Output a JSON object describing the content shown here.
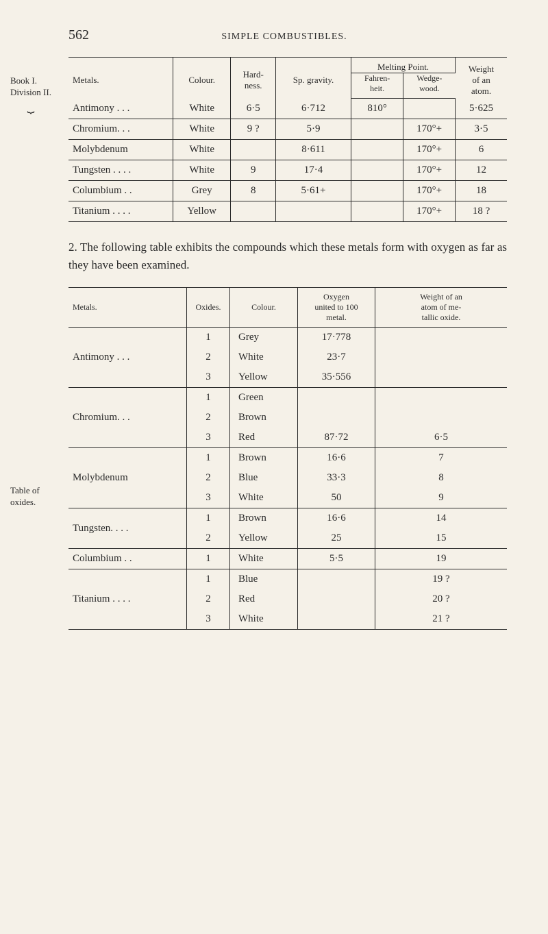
{
  "page_number": "562",
  "running_head": "SIMPLE COMBUSTIBLES.",
  "side1": {
    "l1": "Book I.",
    "l2": "Division II."
  },
  "side2": {
    "l1": "Table of",
    "l2": "oxides."
  },
  "t1": {
    "h_metals": "Metals.",
    "h_colour": "Colour.",
    "h_hard": "Hard-\nness.",
    "h_sp": "Sp. gravity.",
    "h_melt": "Melting Point.",
    "h_fah": "Fahren-\nheit.",
    "h_wed": "Wedge-\nwood.",
    "h_weight": "Weight\nof an\natom.",
    "r": [
      {
        "m": "Antimony . . .",
        "col": "White",
        "h": "6·5",
        "sp": "6·712",
        "f": "810°",
        "w": "",
        "wt": "5·625"
      },
      {
        "m": "Chromium. . .",
        "col": "White",
        "h": "9 ?",
        "sp": "5·9",
        "f": "",
        "w": "170°+",
        "wt": "3·5"
      },
      {
        "m": "Molybdenum",
        "col": "White",
        "h": "",
        "sp": "8·611",
        "f": "",
        "w": "170°+",
        "wt": "6"
      },
      {
        "m": "Tungsten . . . .",
        "col": "White",
        "h": "9",
        "sp": "17·4",
        "f": "",
        "w": "170°+",
        "wt": "12"
      },
      {
        "m": "Columbium . .",
        "col": "Grey",
        "h": "8",
        "sp": "5·61+",
        "f": "",
        "w": "170°+",
        "wt": "18"
      },
      {
        "m": "Titanium . . . .",
        "col": "Yellow",
        "h": "",
        "sp": "",
        "f": "",
        "w": "170°+",
        "wt": "18 ?"
      }
    ]
  },
  "paragraph": "2. The following table exhibits the compounds which these metals form with oxygen as far as they have been examined.",
  "t2": {
    "h_metals": "Metals.",
    "h_ox": "Oxides.",
    "h_col": "Colour.",
    "h_oxy": "Oxygen\nunited to 100\nmetal.",
    "h_wt": "Weight of an\natom of me-\ntallic oxide.",
    "groups": [
      {
        "metal": "Antimony . . .",
        "rows": [
          {
            "o": "1",
            "c": "Grey",
            "x": "17·778",
            "w": ""
          },
          {
            "o": "2",
            "c": "White",
            "x": "23·7",
            "w": ""
          },
          {
            "o": "3",
            "c": "Yellow",
            "x": "35·556",
            "w": ""
          }
        ]
      },
      {
        "metal": "Chromium. . .",
        "rows": [
          {
            "o": "1",
            "c": "Green",
            "x": "",
            "w": ""
          },
          {
            "o": "2",
            "c": "Brown",
            "x": "",
            "w": ""
          },
          {
            "o": "3",
            "c": "Red",
            "x": "87·72",
            "w": "6·5"
          }
        ]
      },
      {
        "metal": "Molybdenum",
        "rows": [
          {
            "o": "1",
            "c": "Brown",
            "x": "16·6",
            "w": "7"
          },
          {
            "o": "2",
            "c": "Blue",
            "x": "33·3",
            "w": "8"
          },
          {
            "o": "3",
            "c": "White",
            "x": "50",
            "w": "9"
          }
        ]
      },
      {
        "metal": "Tungsten. . . .",
        "rows": [
          {
            "o": "1",
            "c": "Brown",
            "x": "16·6",
            "w": "14"
          },
          {
            "o": "2",
            "c": "Yellow",
            "x": "25",
            "w": "15"
          }
        ]
      },
      {
        "metal": "Columbium . .",
        "rows": [
          {
            "o": "1",
            "c": "White",
            "x": "5·5",
            "w": "19"
          }
        ]
      },
      {
        "metal": "Titanium . . . .",
        "rows": [
          {
            "o": "1",
            "c": "Blue",
            "x": "",
            "w": "19 ?"
          },
          {
            "o": "2",
            "c": "Red",
            "x": "",
            "w": "20 ?"
          },
          {
            "o": "3",
            "c": "White",
            "x": "",
            "w": "21 ?"
          }
        ]
      }
    ]
  }
}
